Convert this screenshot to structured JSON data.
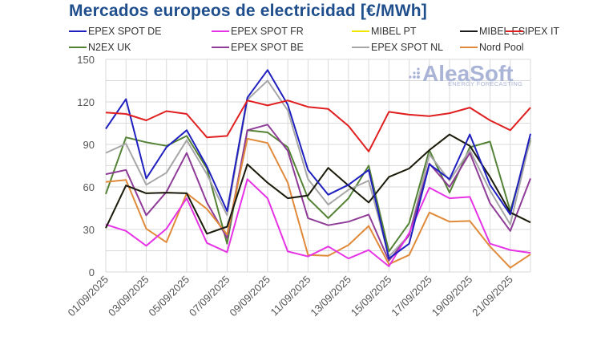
{
  "chart_data": {
    "type": "line",
    "title": "Mercados europeos de electricidad [€/MWh]",
    "xlabel": "",
    "ylabel": "",
    "ylim": [
      0,
      150
    ],
    "yticks": [
      0,
      30,
      60,
      90,
      120,
      150
    ],
    "grid": true,
    "legend_position": "top",
    "x": [
      "01/09/2025",
      "02/09/2025",
      "03/09/2025",
      "04/09/2025",
      "05/09/2025",
      "06/09/2025",
      "07/09/2025",
      "08/09/2025",
      "09/09/2025",
      "10/09/2025",
      "11/09/2025",
      "12/09/2025",
      "13/09/2025",
      "14/09/2025",
      "15/09/2025",
      "16/09/2025",
      "17/09/2025",
      "18/09/2025",
      "19/09/2025",
      "20/09/2025",
      "21/09/2025",
      "22/09/2025"
    ],
    "xtick_labels": [
      "01/09/2025",
      "03/09/2025",
      "05/09/2025",
      "07/09/2025",
      "09/09/2025",
      "11/09/2025",
      "13/09/2025",
      "15/09/2025",
      "17/09/2025",
      "19/09/2025",
      "21/09/2025"
    ],
    "series": [
      {
        "name": "MIBEL PT",
        "color": "#f2e600",
        "values": [
          31,
          61,
          55.5,
          56,
          55.5,
          27,
          32,
          76,
          63,
          52,
          54,
          73.5,
          61,
          49,
          67,
          73,
          86,
          97,
          89,
          67,
          42,
          35
        ]
      },
      {
        "name": "N2EX UK",
        "color": "#548235",
        "values": [
          55,
          95,
          91.5,
          89,
          96,
          73,
          20,
          100,
          98.5,
          88,
          52,
          38,
          52,
          75,
          14.5,
          34.5,
          86,
          56,
          88,
          92,
          43,
          93
        ]
      },
      {
        "name": "EPEX SPOT NL",
        "color": "#a6a6a6",
        "values": [
          84,
          90.5,
          61.5,
          70,
          93,
          69,
          40,
          121.5,
          135,
          114,
          65.5,
          47.5,
          58,
          64.5,
          11,
          26,
          83,
          64.5,
          86,
          57.5,
          33.5,
          94.5
        ]
      },
      {
        "name": "EPEX SPOT BE",
        "color": "#8e3c97",
        "values": [
          69,
          72,
          40,
          56.5,
          84,
          49,
          24,
          100,
          104,
          85.5,
          38,
          33,
          35.5,
          40.5,
          8,
          26,
          76.5,
          60,
          84,
          48.5,
          29,
          66
        ]
      },
      {
        "name": "Nord Pool",
        "color": "#e08a3a",
        "values": [
          63.5,
          65,
          30.5,
          21,
          55.5,
          44.5,
          26.5,
          94,
          91,
          63,
          12,
          11.5,
          19,
          32.5,
          5.5,
          12,
          42,
          35.5,
          36,
          18,
          3,
          12.5
        ]
      },
      {
        "name": "EPEX SPOT FR",
        "color": "#e633e6",
        "values": [
          33.5,
          29,
          18.5,
          30.5,
          52,
          20.5,
          14,
          65.5,
          52,
          14.5,
          11,
          18,
          9.5,
          15.5,
          4,
          27.5,
          59.5,
          52,
          53,
          20,
          15.5,
          13.5
        ]
      },
      {
        "name": "MIBEL ES",
        "color": "#1a1a1a",
        "values": [
          31,
          61,
          55.5,
          56,
          55.5,
          27,
          32,
          76,
          63,
          52,
          54,
          73.5,
          61,
          49,
          67,
          73,
          86,
          97,
          89,
          67,
          42,
          35
        ]
      },
      {
        "name": "EPEX SPOT DE",
        "color": "#1f1fbf",
        "values": [
          101,
          122,
          66,
          88,
          100,
          74.5,
          43,
          123,
          142.5,
          118,
          72,
          54.5,
          61.5,
          72,
          9.5,
          20,
          76,
          65.5,
          97,
          61.5,
          40.5,
          97.5
        ]
      },
      {
        "name": "IPEX IT",
        "color": "#e02020",
        "values": [
          112.5,
          111.5,
          107,
          113.5,
          111.5,
          95,
          96,
          121,
          117.5,
          121,
          116.5,
          115,
          103,
          85,
          113,
          111,
          110,
          112,
          116,
          107,
          100,
          116
        ]
      }
    ]
  },
  "legend": [
    {
      "label": "EPEX SPOT DE",
      "color": "#1f1fbf"
    },
    {
      "label": "EPEX SPOT FR",
      "color": "#e633e6"
    },
    {
      "label": "MIBEL PT",
      "color": "#f2e600"
    },
    {
      "label": "MIBEL ES",
      "color": "#1a1a1a"
    },
    {
      "label": "IPEX IT",
      "color": "#e02020"
    },
    {
      "label": "N2EX UK",
      "color": "#548235"
    },
    {
      "label": "EPEX SPOT BE",
      "color": "#8e3c97"
    },
    {
      "label": "EPEX SPOT NL",
      "color": "#a6a6a6"
    },
    {
      "label": "Nord Pool",
      "color": "#e08a3a"
    }
  ],
  "watermark": {
    "brand": "AleaSoft",
    "tagline": "ENERGY FORECASTING"
  }
}
